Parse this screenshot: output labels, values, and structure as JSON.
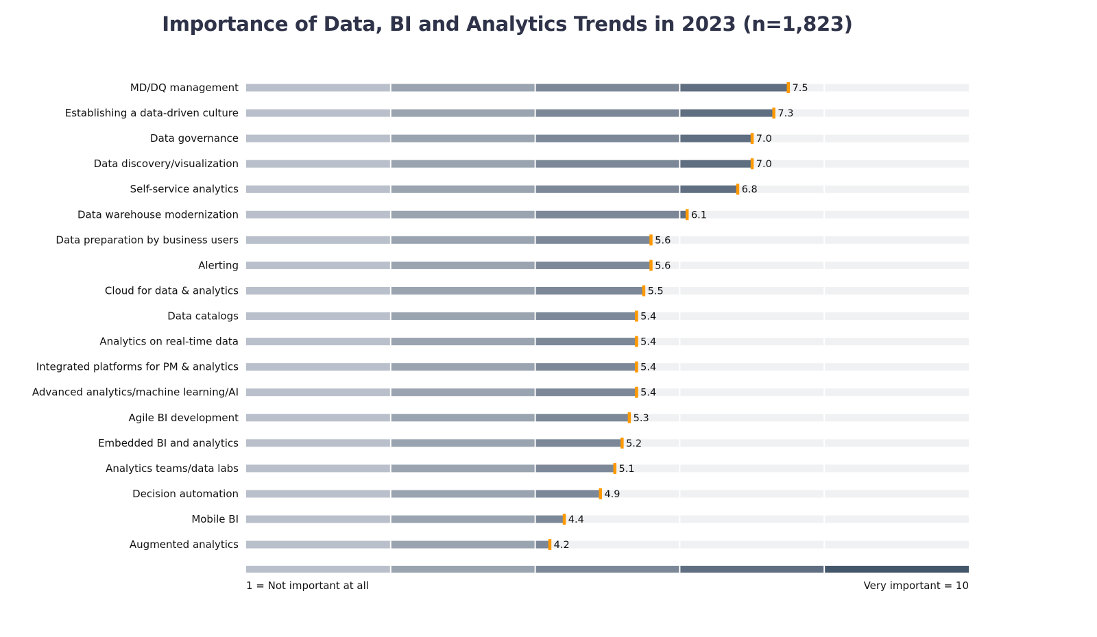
{
  "chart_data": {
    "type": "bar",
    "orientation": "horizontal",
    "title": "Importance of Data, BI and Analytics Trends in 2023 (n=1,823)",
    "categories": [
      "MD/DQ management",
      "Establishing a data-driven culture",
      "Data governance",
      "Data discovery/visualization",
      "Self-service analytics",
      "Data warehouse modernization",
      "Data preparation by business users",
      "Alerting",
      "Cloud for data & analytics",
      "Data catalogs",
      "Analytics on real-time data",
      "Integrated platforms for PM & analytics",
      "Advanced analytics/machine learning/AI",
      "Agile BI development",
      "Embedded BI and analytics",
      "Analytics teams/data labs",
      "Decision automation",
      "Mobile BI",
      "Augmented analytics"
    ],
    "values": [
      7.5,
      7.3,
      7.0,
      7.0,
      6.8,
      6.1,
      5.6,
      5.6,
      5.5,
      5.4,
      5.4,
      5.4,
      5.4,
      5.3,
      5.2,
      5.1,
      4.9,
      4.4,
      4.2
    ],
    "value_labels": [
      "7.5",
      "7.3",
      "7.0",
      "7.0",
      "6.8",
      "6.1",
      "5.6",
      "5.6",
      "5.5",
      "5.4",
      "5.4",
      "5.4",
      "5.4",
      "5.3",
      "5.2",
      "5.1",
      "4.9",
      "4.4",
      "4.2"
    ],
    "xlim": [
      0,
      10
    ],
    "scale_min_label": "1 = Not important at all",
    "scale_max_label": "Very important = 10",
    "grid": false,
    "legend": "bottom",
    "colors": {
      "segments": [
        "#b9c0cb",
        "#99a4b0",
        "#7c8898",
        "#5f6e80",
        "#44566a"
      ],
      "track": "#f0f1f3",
      "marker": "#ff9900"
    }
  }
}
